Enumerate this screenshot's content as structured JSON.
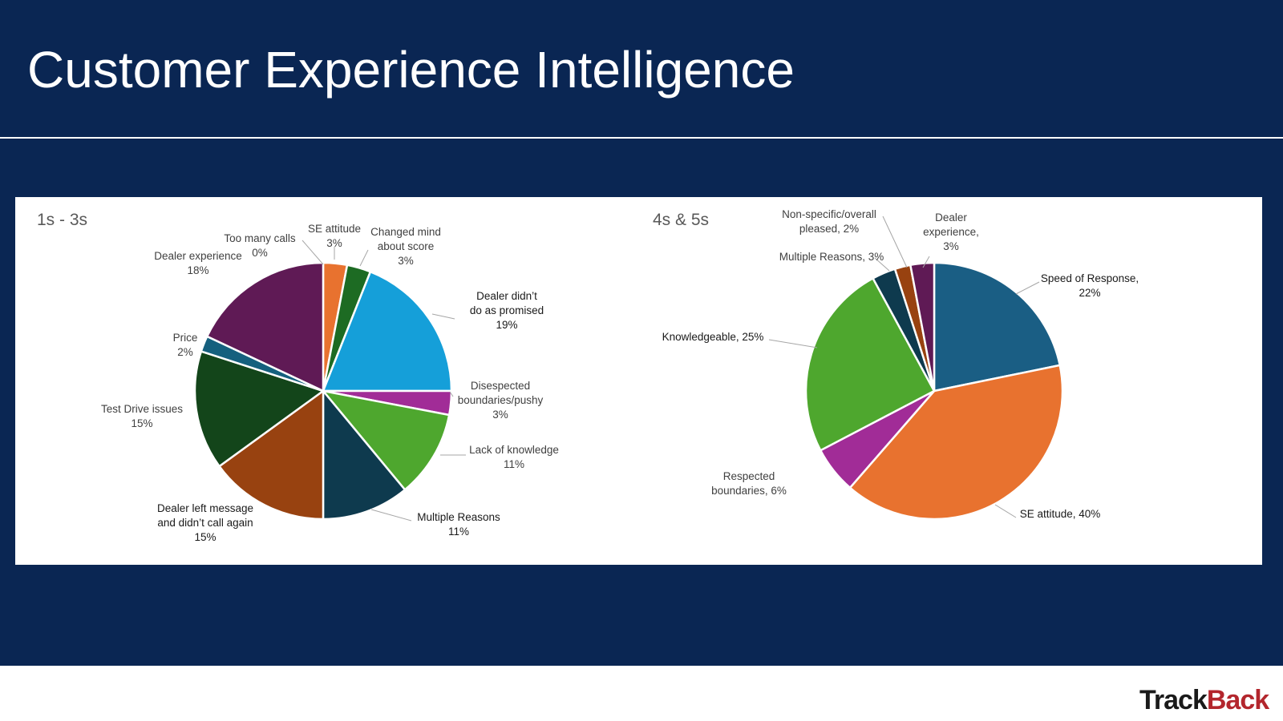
{
  "slide": {
    "title": "Customer Experience Intelligence",
    "logo_part1": "Track",
    "logo_part2": "Back"
  },
  "chart_data": [
    {
      "type": "pie",
      "title": "1s - 3s",
      "slices": [
        {
          "label": "SE attitude",
          "value": 3,
          "color": "#e8722f"
        },
        {
          "label": "Changed mind about score",
          "value": 3,
          "color": "#1d6b23"
        },
        {
          "label": "Dealer didn’t do as promised",
          "value": 19,
          "color": "#159fd9"
        },
        {
          "label": "Disespected boundaries/pushy",
          "value": 3,
          "color": "#a12c97"
        },
        {
          "label": "Lack of knowledge",
          "value": 11,
          "color": "#4ea72e"
        },
        {
          "label": "Multiple Reasons",
          "value": 11,
          "color": "#0e3a4e"
        },
        {
          "label": "Dealer left message and didn’t call again",
          "value": 15,
          "color": "#984210"
        },
        {
          "label": "Test Drive issues",
          "value": 15,
          "color": "#13451a"
        },
        {
          "label": "Price",
          "value": 2,
          "color": "#15607e"
        },
        {
          "label": "Dealer experience",
          "value": 18,
          "color": "#5f1a55"
        },
        {
          "label": "Too many calls",
          "value": 0,
          "color": "#e8722f"
        }
      ],
      "labels": [
        {
          "lines": [
            "SE attitude",
            "3%"
          ],
          "dark": false
        },
        {
          "lines": [
            "Changed mind",
            "about score",
            "3%"
          ],
          "dark": false
        },
        {
          "lines": [
            "Dealer didn’t",
            "do as promised",
            "19%"
          ],
          "dark": true
        },
        {
          "lines": [
            "Disespected",
            "boundaries/pushy",
            "3%"
          ],
          "dark": false
        },
        {
          "lines": [
            "Lack of knowledge",
            "11%"
          ],
          "dark": false
        },
        {
          "lines": [
            "Multiple Reasons",
            "11%"
          ],
          "dark": true
        },
        {
          "lines": [
            "Dealer left message",
            "and didn’t call again",
            "15%"
          ],
          "dark": true
        },
        {
          "lines": [
            "Test Drive issues",
            "15%"
          ],
          "dark": false
        },
        {
          "lines": [
            "Price",
            "2%"
          ],
          "dark": false
        },
        {
          "lines": [
            "Dealer experience",
            "18%"
          ],
          "dark": false
        },
        {
          "lines": [
            "Too many calls",
            "0%"
          ],
          "dark": false
        }
      ]
    },
    {
      "type": "pie",
      "title": "4s & 5s",
      "slices": [
        {
          "label": "Speed of Response",
          "value": 22,
          "color": "#1a5e84"
        },
        {
          "label": "SE attitude",
          "value": 40,
          "color": "#e8722f"
        },
        {
          "label": "Respected boundaries",
          "value": 6,
          "color": "#a12c97"
        },
        {
          "label": "Knowledgeable",
          "value": 25,
          "color": "#4ea72e"
        },
        {
          "label": "Multiple Reasons",
          "value": 3,
          "color": "#0e3a4e"
        },
        {
          "label": "Non-specific/overall pleased",
          "value": 2,
          "color": "#984210"
        },
        {
          "label": "Dealer experience",
          "value": 3,
          "color": "#5f1a55"
        }
      ],
      "labels": [
        {
          "lines": [
            "Speed of Response,",
            "22%"
          ],
          "dark": true
        },
        {
          "lines": [
            "SE attitude, 40%"
          ],
          "dark": true
        },
        {
          "lines": [
            "Respected",
            "boundaries, 6%"
          ],
          "dark": false
        },
        {
          "lines": [
            "Knowledgeable, 25%"
          ],
          "dark": true
        },
        {
          "lines": [
            "Multiple Reasons, 3%"
          ],
          "dark": false
        },
        {
          "lines": [
            "Non-specific/overall",
            "pleased, 2%"
          ],
          "dark": false
        },
        {
          "lines": [
            "Dealer",
            "experience,",
            "3%"
          ],
          "dark": false
        }
      ]
    }
  ]
}
